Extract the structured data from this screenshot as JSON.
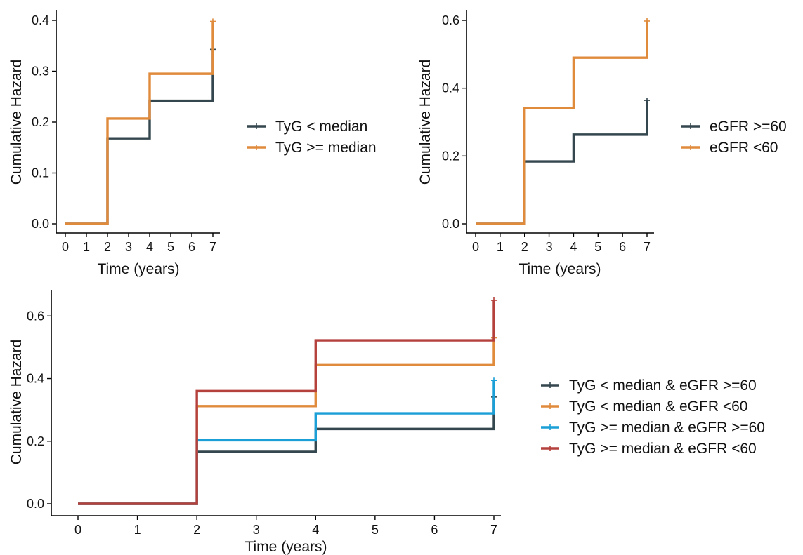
{
  "colors": {
    "dark": "#34474f",
    "orange": "#e08a3c",
    "blue": "#1a9fd6",
    "red": "#b5413d",
    "axis": "#000000"
  },
  "chart_data": [
    {
      "type": "line",
      "step": true,
      "xlabel": "Time (years)",
      "ylabel": "Cumulative Hazard",
      "xlim": [
        0,
        7
      ],
      "ylim": [
        0,
        0.4
      ],
      "x_ticks": [
        0,
        1,
        2,
        3,
        4,
        5,
        6,
        7
      ],
      "y_ticks": [
        0.0,
        0.1,
        0.2,
        0.3,
        0.4
      ],
      "y_tick_labels": [
        "0.0",
        "0.1",
        "0.2",
        "0.3",
        "0.4"
      ],
      "legend_position": "right",
      "series": [
        {
          "name": "TyG < median",
          "color": "#34474f",
          "x": [
            0,
            2,
            4,
            7
          ],
          "y": [
            0,
            0.168,
            0.242,
            0.343
          ],
          "censor": [
            [
              7,
              0.343
            ]
          ]
        },
        {
          "name": "TyG >= median",
          "color": "#e08a3c",
          "x": [
            0,
            2,
            4,
            7
          ],
          "y": [
            0,
            0.207,
            0.295,
            0.398
          ],
          "censor": [
            [
              7,
              0.398
            ]
          ]
        }
      ]
    },
    {
      "type": "line",
      "step": true,
      "xlabel": "Time (years)",
      "ylabel": "Cumulative Hazard",
      "xlim": [
        0,
        7
      ],
      "ylim": [
        0,
        0.6
      ],
      "x_ticks": [
        0,
        1,
        2,
        3,
        4,
        5,
        6,
        7
      ],
      "y_ticks": [
        0.0,
        0.2,
        0.4,
        0.6
      ],
      "y_tick_labels": [
        "0.0",
        "0.2",
        "0.4",
        "0.6"
      ],
      "legend_position": "right",
      "series": [
        {
          "name": "eGFR >=60",
          "color": "#34474f",
          "x": [
            0,
            2,
            4,
            7
          ],
          "y": [
            0,
            0.184,
            0.263,
            0.364
          ],
          "censor": [
            [
              7,
              0.364
            ]
          ]
        },
        {
          "name": "eGFR <60",
          "color": "#e08a3c",
          "x": [
            0,
            2,
            4,
            7
          ],
          "y": [
            0,
            0.341,
            0.49,
            0.598
          ],
          "censor": [
            [
              7,
              0.598
            ]
          ]
        }
      ]
    },
    {
      "type": "line",
      "step": true,
      "xlabel": "Time (years)",
      "ylabel": "Cumulative Hazard",
      "xlim": [
        0,
        7
      ],
      "ylim": [
        0,
        0.65
      ],
      "x_ticks": [
        0,
        1,
        2,
        3,
        4,
        5,
        6,
        7
      ],
      "y_ticks": [
        0.0,
        0.2,
        0.4,
        0.6
      ],
      "y_tick_labels": [
        "0.0",
        "0.2",
        "0.4",
        "0.6"
      ],
      "legend_position": "right",
      "series": [
        {
          "name": "TyG < median & eGFR >=60",
          "color": "#34474f",
          "x": [
            0,
            2,
            4,
            7
          ],
          "y": [
            0,
            0.166,
            0.239,
            0.341
          ],
          "censor": [
            [
              7,
              0.341
            ]
          ]
        },
        {
          "name": "TyG < median & eGFR <60",
          "color": "#e08a3c",
          "x": [
            0,
            2,
            4,
            7
          ],
          "y": [
            0,
            0.312,
            0.443,
            0.53
          ],
          "censor": [
            [
              7,
              0.53
            ]
          ]
        },
        {
          "name": "TyG >= median & eGFR >=60",
          "color": "#1a9fd6",
          "x": [
            0,
            2,
            4,
            7
          ],
          "y": [
            0,
            0.203,
            0.289,
            0.394
          ],
          "censor": [
            [
              7,
              0.394
            ]
          ]
        },
        {
          "name": "TyG >= median & eGFR <60",
          "color": "#b5413d",
          "x": [
            0,
            2,
            4,
            7
          ],
          "y": [
            0,
            0.36,
            0.522,
            0.65
          ],
          "censor": [
            [
              7,
              0.65
            ]
          ]
        }
      ]
    }
  ]
}
